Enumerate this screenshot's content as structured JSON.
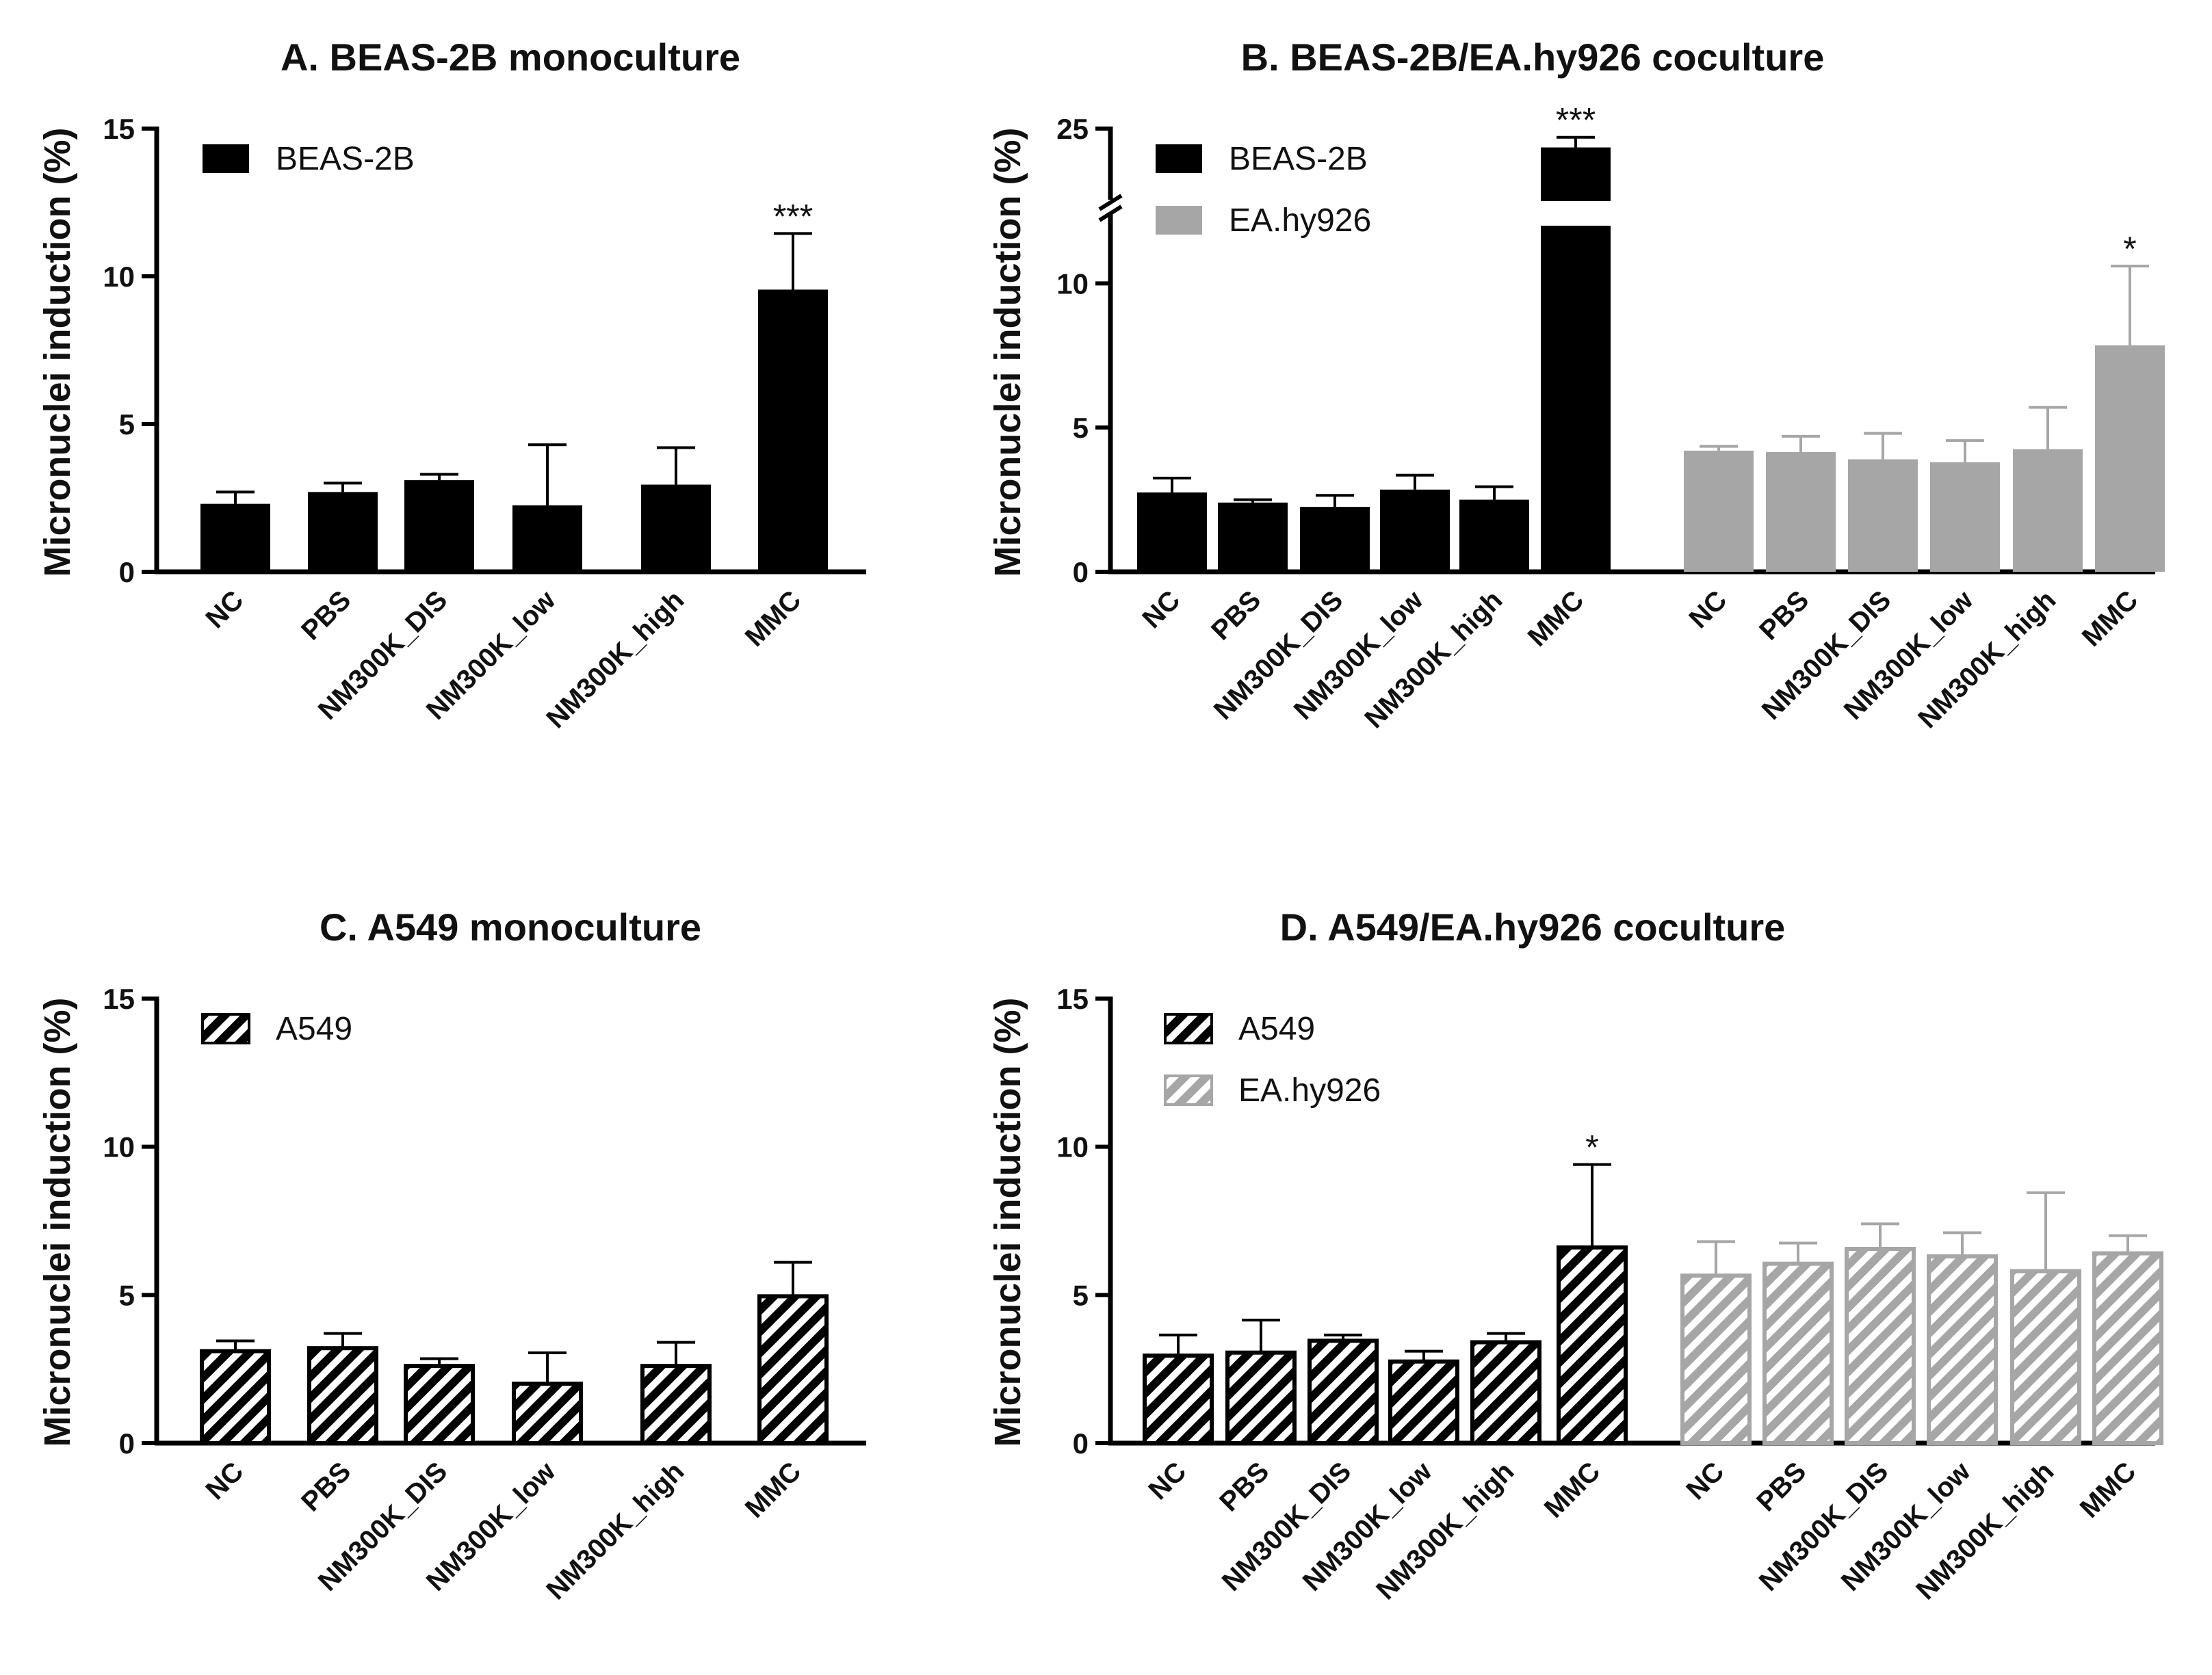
{
  "chart_data": [
    {
      "id": "A",
      "type": "bar",
      "title": "A. BEAS-2B monoculture",
      "ylabel": "Micronuclei induction (%)",
      "ylim": [
        0,
        15
      ],
      "yticks": [
        0,
        5,
        10,
        15
      ],
      "legend_position": "top-left",
      "series": [
        {
          "name": "BEAS-2B",
          "color": "#000000",
          "pattern": "solid",
          "categories": [
            "NC",
            "PBS",
            "NM300K_DIS",
            "NM300K_low",
            "NM300K_high",
            "MMC"
          ],
          "values": [
            2.3,
            2.7,
            3.1,
            2.25,
            2.95,
            9.55
          ],
          "errors": [
            0.4,
            0.3,
            0.2,
            2.05,
            1.25,
            1.9
          ],
          "significance": [
            "",
            "",
            "",
            "",
            "",
            "***"
          ]
        }
      ]
    },
    {
      "id": "B",
      "type": "bar",
      "title": "B. BEAS-2B/EA.hy926 coculture",
      "ylabel": "Micronuclei induction (%)",
      "ylim": [
        0,
        25
      ],
      "yticks": [
        0,
        5,
        10,
        25
      ],
      "axis_break": true,
      "legend_position": "top-left",
      "series": [
        {
          "name": "BEAS-2B",
          "color": "#000000",
          "pattern": "solid",
          "categories": [
            "NC",
            "PBS",
            "NM300K_DIS",
            "NM300K_low",
            "NM300K_high",
            "MMC"
          ],
          "values": [
            2.75,
            2.4,
            2.25,
            2.85,
            2.5,
            23.7
          ],
          "errors": [
            0.5,
            0.1,
            0.4,
            0.5,
            0.45,
            0.7
          ],
          "significance": [
            "",
            "",
            "",
            "",
            "",
            "***"
          ]
        },
        {
          "name": "EA.hy926",
          "color": "#a6a6a6",
          "pattern": "solid",
          "categories": [
            "NC",
            "PBS",
            "NM300K_DIS",
            "NM300K_low",
            "NM300K_high",
            "MMC"
          ],
          "values": [
            4.2,
            4.15,
            3.9,
            3.8,
            4.25,
            7.85
          ],
          "errors": [
            0.15,
            0.55,
            0.9,
            0.75,
            1.45,
            2.75
          ],
          "significance": [
            "",
            "",
            "",
            "",
            "",
            "*"
          ]
        }
      ]
    },
    {
      "id": "C",
      "type": "bar",
      "title": "C. A549 monoculture",
      "ylabel": "Micronuclei induction (%)",
      "ylim": [
        0,
        15
      ],
      "yticks": [
        0,
        5,
        10,
        15
      ],
      "legend_position": "top-left",
      "series": [
        {
          "name": "A549",
          "color": "#000000",
          "pattern": "hatched",
          "categories": [
            "NC",
            "PBS",
            "NM300K_DIS",
            "NM300K_low",
            "NM300K_high",
            "MMC"
          ],
          "values": [
            3.15,
            3.25,
            2.65,
            2.05,
            2.65,
            5.0
          ],
          "errors": [
            0.3,
            0.45,
            0.2,
            1.0,
            0.75,
            1.1
          ],
          "significance": [
            "",
            "",
            "",
            "",
            "",
            ""
          ]
        }
      ]
    },
    {
      "id": "D",
      "type": "bar",
      "title": "D. A549/EA.hy926 coculture",
      "ylabel": "Micronuclei induction (%)",
      "ylim": [
        0,
        15
      ],
      "yticks": [
        0,
        5,
        10,
        15
      ],
      "legend_position": "top-left",
      "series": [
        {
          "name": "A549",
          "color": "#000000",
          "pattern": "hatched",
          "categories": [
            "NC",
            "PBS",
            "NM300K_DIS",
            "NM300K_low",
            "NM300K_high",
            "MMC"
          ],
          "values": [
            3.0,
            3.1,
            3.5,
            2.8,
            3.45,
            6.65
          ],
          "errors": [
            0.65,
            1.05,
            0.15,
            0.3,
            0.25,
            2.75
          ],
          "significance": [
            "",
            "",
            "",
            "",
            "",
            "*"
          ]
        },
        {
          "name": "EA.hy926",
          "color": "#a6a6a6",
          "pattern": "hatched",
          "categories": [
            "NC",
            "PBS",
            "NM300K_DIS",
            "NM300K_low",
            "NM300K_high",
            "MMC"
          ],
          "values": [
            5.7,
            6.1,
            6.6,
            6.35,
            5.85,
            6.45
          ],
          "errors": [
            1.1,
            0.65,
            0.8,
            0.75,
            2.6,
            0.55
          ],
          "significance": [
            "",
            "",
            "",
            "",
            "",
            ""
          ]
        }
      ]
    }
  ]
}
